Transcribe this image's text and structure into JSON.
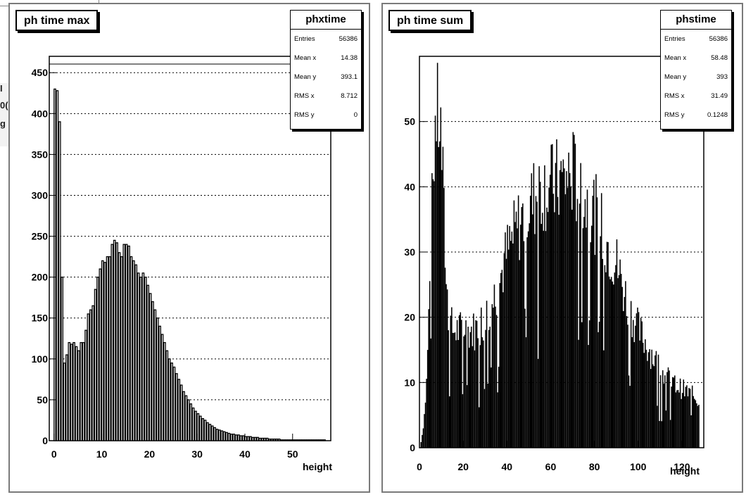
{
  "side_fragments": [
    "I",
    "0(",
    "g"
  ],
  "panels": [
    {
      "title": "ph time max",
      "stats": {
        "name": "phxtime",
        "rows": [
          {
            "label": "Entries",
            "value": "56386"
          },
          {
            "label": "Mean x",
            "value": "14.38"
          },
          {
            "label": "Mean y",
            "value": "393.1"
          },
          {
            "label": "RMS x",
            "value": "8.712"
          },
          {
            "label": "RMS y",
            "value": "0"
          }
        ]
      }
    },
    {
      "title": "ph time sum",
      "stats": {
        "name": "phstime",
        "rows": [
          {
            "label": "Entries",
            "value": "56386"
          },
          {
            "label": "Mean x",
            "value": "58.48"
          },
          {
            "label": "Mean y",
            "value": "393"
          },
          {
            "label": "RMS x",
            "value": "31.49"
          },
          {
            "label": "RMS y",
            "value": "0.1248"
          }
        ]
      }
    }
  ],
  "chart_data": [
    {
      "type": "bar",
      "title": "ph time max",
      "xlabel": "height",
      "ylabel": "",
      "xlim": [
        -1,
        58
      ],
      "ylim": [
        0,
        470
      ],
      "grid": "horizontal dotted",
      "x_ticks": [
        0,
        10,
        20,
        30,
        40,
        50
      ],
      "y_ticks": [
        0,
        50,
        100,
        150,
        200,
        250,
        300,
        350,
        400,
        450
      ],
      "bin_width": 0.5,
      "bin_start": 0,
      "values": [
        430,
        428,
        390,
        200,
        95,
        105,
        120,
        118,
        120,
        115,
        110,
        120,
        120,
        135,
        155,
        160,
        165,
        185,
        200,
        210,
        220,
        218,
        225,
        225,
        240,
        245,
        242,
        230,
        225,
        240,
        240,
        238,
        225,
        220,
        215,
        205,
        200,
        205,
        200,
        190,
        180,
        170,
        160,
        150,
        140,
        130,
        120,
        110,
        100,
        95,
        90,
        82,
        75,
        68,
        60,
        55,
        50,
        45,
        40,
        36,
        33,
        30,
        27,
        25,
        22,
        20,
        18,
        16,
        14,
        13,
        12,
        11,
        10,
        9,
        8,
        8,
        7,
        7,
        6,
        6,
        5,
        5,
        5,
        4,
        4,
        4,
        3,
        3,
        3,
        3,
        2,
        2,
        2,
        2,
        2,
        1,
        1,
        1,
        1,
        1,
        1,
        1,
        1,
        1,
        1,
        1,
        1,
        1,
        1,
        1,
        1,
        1,
        1,
        1
      ]
    },
    {
      "type": "bar",
      "title": "ph time sum",
      "xlabel": "height",
      "ylabel": "",
      "xlim": [
        0,
        130
      ],
      "ylim": [
        0,
        60
      ],
      "grid": "horizontal dotted",
      "x_ticks": [
        0,
        20,
        40,
        60,
        80,
        100,
        120
      ],
      "y_ticks": [
        0,
        10,
        20,
        30,
        40,
        50
      ],
      "bin_width": 0.5,
      "bin_start": 0,
      "envelope": [
        {
          "x": 0,
          "y": 0
        },
        {
          "x": 1,
          "y": 2
        },
        {
          "x": 2,
          "y": 5
        },
        {
          "x": 3,
          "y": 10
        },
        {
          "x": 4,
          "y": 20
        },
        {
          "x": 5,
          "y": 30
        },
        {
          "x": 6,
          "y": 42
        },
        {
          "x": 7,
          "y": 50
        },
        {
          "x": 8,
          "y": 52
        },
        {
          "x": 9,
          "y": 50
        },
        {
          "x": 10,
          "y": 45
        },
        {
          "x": 11,
          "y": 35
        },
        {
          "x": 12,
          "y": 26
        },
        {
          "x": 13,
          "y": 20
        },
        {
          "x": 15,
          "y": 18
        },
        {
          "x": 20,
          "y": 18
        },
        {
          "x": 25,
          "y": 18
        },
        {
          "x": 30,
          "y": 20
        },
        {
          "x": 35,
          "y": 24
        },
        {
          "x": 40,
          "y": 30
        },
        {
          "x": 45,
          "y": 34
        },
        {
          "x": 50,
          "y": 37
        },
        {
          "x": 55,
          "y": 40
        },
        {
          "x": 60,
          "y": 40
        },
        {
          "x": 65,
          "y": 41
        },
        {
          "x": 70,
          "y": 42
        },
        {
          "x": 75,
          "y": 38
        },
        {
          "x": 80,
          "y": 36
        },
        {
          "x": 85,
          "y": 32
        },
        {
          "x": 90,
          "y": 28
        },
        {
          "x": 95,
          "y": 22
        },
        {
          "x": 100,
          "y": 18
        },
        {
          "x": 105,
          "y": 15
        },
        {
          "x": 110,
          "y": 12
        },
        {
          "x": 115,
          "y": 10
        },
        {
          "x": 120,
          "y": 9
        },
        {
          "x": 125,
          "y": 8
        },
        {
          "x": 128,
          "y": 7
        }
      ]
    }
  ]
}
